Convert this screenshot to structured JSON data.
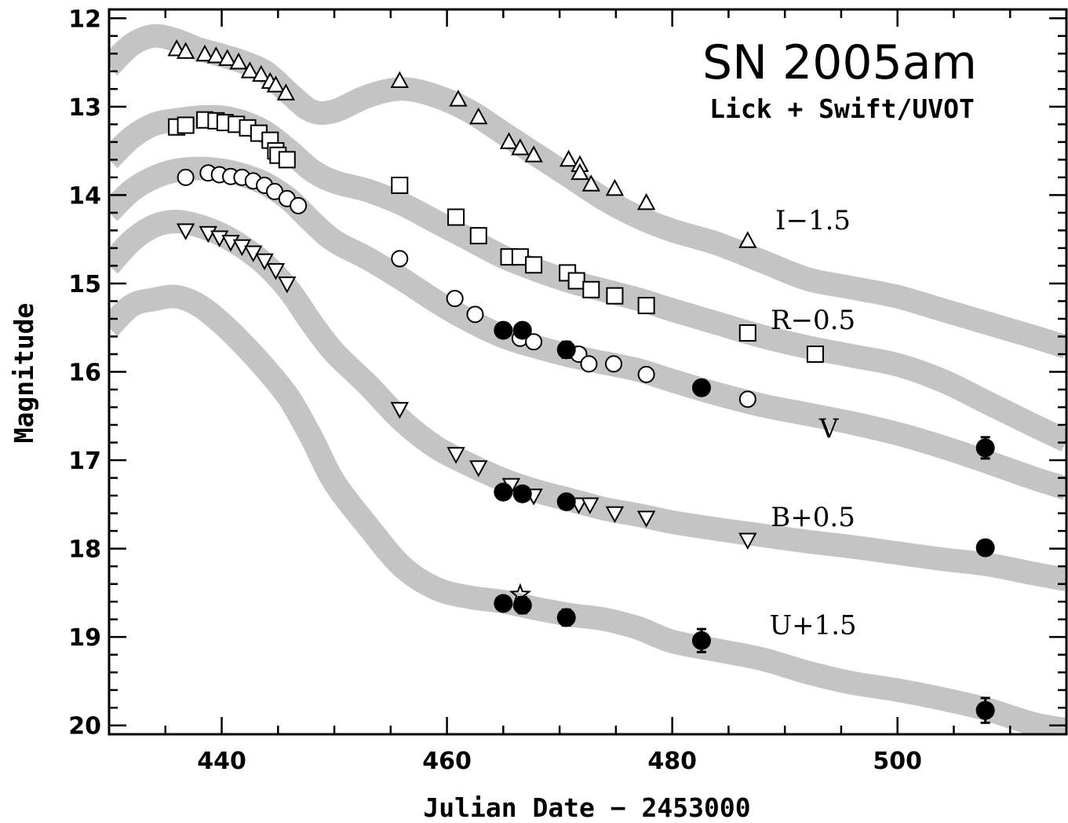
{
  "chart_data": {
    "type": "scatter",
    "title": "SN 2005am",
    "subtitle": "Lick + Swift/UVOT",
    "xlabel": "Julian Date − 2453000",
    "ylabel": "Magnitude",
    "xlim": [
      430,
      515
    ],
    "ylim": [
      20.1,
      11.9
    ],
    "y_inverted": true,
    "x_ticks": [
      440,
      460,
      480,
      500
    ],
    "y_ticks": [
      12,
      13,
      14,
      15,
      16,
      17,
      18,
      19,
      20
    ],
    "grid": false,
    "legend": "none",
    "band_color": "#c4c4c4",
    "series": [
      {
        "name": "I−1.5",
        "marker": "triangle-up",
        "filled": false,
        "label_pos": [
          492.5,
          14.28
        ],
        "template": {
          "x": [
            430,
            432,
            434,
            436,
            438,
            440,
            442,
            444,
            446,
            448,
            450,
            453,
            456,
            459,
            462,
            465,
            468,
            471,
            474,
            477,
            480,
            484,
            488,
            492,
            496,
            500,
            504,
            508,
            512,
            515
          ],
          "y": [
            12.55,
            12.3,
            12.2,
            12.25,
            12.35,
            12.42,
            12.5,
            12.62,
            12.85,
            13.05,
            13.05,
            12.88,
            12.8,
            12.88,
            13.05,
            13.3,
            13.55,
            13.8,
            14.05,
            14.25,
            14.4,
            14.55,
            14.75,
            14.95,
            15.05,
            15.15,
            15.3,
            15.45,
            15.6,
            15.72
          ]
        },
        "points": [
          [
            436,
            12.35
          ],
          [
            436.8,
            12.38
          ],
          [
            438.5,
            12.41
          ],
          [
            439.5,
            12.43
          ],
          [
            440.5,
            12.46
          ],
          [
            441.5,
            12.5
          ],
          [
            442.5,
            12.6
          ],
          [
            443.5,
            12.64
          ],
          [
            444.3,
            12.72
          ],
          [
            444.8,
            12.76
          ],
          [
            445.7,
            12.85
          ],
          [
            455.8,
            12.71
          ],
          [
            461,
            12.92
          ],
          [
            462.8,
            13.12
          ],
          [
            465.5,
            13.4
          ],
          [
            466.5,
            13.47
          ],
          [
            467.7,
            13.55
          ],
          [
            470.8,
            13.6
          ],
          [
            471.8,
            13.66
          ],
          [
            471.8,
            13.75
          ],
          [
            472.8,
            13.88
          ],
          [
            474.9,
            13.93
          ],
          [
            477.7,
            14.09
          ],
          [
            486.7,
            14.52
          ]
        ]
      },
      {
        "name": "R−0.5",
        "marker": "square",
        "filled": false,
        "label_pos": [
          492.5,
          15.41
        ],
        "template": {
          "x": [
            430,
            432,
            434,
            436,
            438,
            440,
            442,
            444,
            446,
            448,
            450,
            453,
            456,
            459,
            462,
            465,
            468,
            471,
            474,
            477,
            480,
            484,
            488,
            492,
            496,
            500,
            504,
            508,
            512,
            515
          ],
          "y": [
            13.6,
            13.35,
            13.2,
            13.15,
            13.12,
            13.12,
            13.18,
            13.3,
            13.5,
            13.72,
            13.85,
            13.95,
            14.1,
            14.3,
            14.5,
            14.7,
            14.85,
            14.98,
            15.08,
            15.18,
            15.3,
            15.45,
            15.6,
            15.72,
            15.82,
            15.92,
            16.1,
            16.35,
            16.6,
            16.78
          ]
        },
        "points": [
          [
            436,
            13.23
          ],
          [
            436.8,
            13.21
          ],
          [
            438.5,
            13.15
          ],
          [
            439.5,
            13.16
          ],
          [
            440.3,
            13.18
          ],
          [
            441.3,
            13.2
          ],
          [
            442.3,
            13.24
          ],
          [
            443.3,
            13.3
          ],
          [
            444.3,
            13.38
          ],
          [
            444.8,
            13.5
          ],
          [
            445,
            13.55
          ],
          [
            445.8,
            13.6
          ],
          [
            455.8,
            13.89
          ],
          [
            460.8,
            14.25
          ],
          [
            462.8,
            14.46
          ],
          [
            465.5,
            14.7
          ],
          [
            466.5,
            14.7
          ],
          [
            467.7,
            14.79
          ],
          [
            470.7,
            14.88
          ],
          [
            471.5,
            14.97
          ],
          [
            472.8,
            15.07
          ],
          [
            474.9,
            15.14
          ],
          [
            477.7,
            15.25
          ],
          [
            486.7,
            15.56
          ],
          [
            492.7,
            15.8
          ]
        ]
      },
      {
        "name": "V",
        "marker": "circle",
        "filled": false,
        "label_pos": [
          493.9,
          16.64
        ],
        "template": {
          "x": [
            430,
            432,
            434,
            436,
            438,
            440,
            442,
            444,
            446,
            448,
            450,
            453,
            456,
            459,
            462,
            465,
            468,
            471,
            474,
            477,
            480,
            484,
            488,
            492,
            496,
            500,
            504,
            508,
            512,
            515
          ],
          "y": [
            14.2,
            13.95,
            13.8,
            13.72,
            13.7,
            13.72,
            13.78,
            13.88,
            14.05,
            14.3,
            14.52,
            14.72,
            14.95,
            15.2,
            15.42,
            15.6,
            15.72,
            15.82,
            15.9,
            15.98,
            16.1,
            16.25,
            16.38,
            16.48,
            16.58,
            16.7,
            16.85,
            17.02,
            17.2,
            17.32
          ]
        },
        "points": [
          [
            436.8,
            13.8
          ],
          [
            438.8,
            13.75
          ],
          [
            439.8,
            13.77
          ],
          [
            440.8,
            13.79
          ],
          [
            441.8,
            13.8
          ],
          [
            442.8,
            13.84
          ],
          [
            443.8,
            13.89
          ],
          [
            444.7,
            13.96
          ],
          [
            445.8,
            14.04
          ],
          [
            446.8,
            14.12
          ],
          [
            455.8,
            14.72
          ],
          [
            460.7,
            15.17
          ],
          [
            462.5,
            15.35
          ],
          [
            466.5,
            15.62
          ],
          [
            467.7,
            15.66
          ],
          [
            471.7,
            15.8
          ],
          [
            472.6,
            15.91
          ],
          [
            474.8,
            15.91
          ],
          [
            477.7,
            16.03
          ],
          [
            486.7,
            16.31
          ]
        ]
      },
      {
        "name": "B+0.5",
        "marker": "triangle-down",
        "filled": false,
        "label_pos": [
          492.5,
          17.64
        ],
        "template": {
          "x": [
            430,
            432,
            434,
            436,
            438,
            440,
            442,
            444,
            446,
            448,
            450,
            453,
            456,
            459,
            462,
            465,
            468,
            471,
            474,
            477,
            480,
            484,
            488,
            492,
            496,
            500,
            504,
            508,
            512,
            515
          ],
          "y": [
            14.8,
            14.52,
            14.35,
            14.3,
            14.35,
            14.45,
            14.6,
            14.8,
            15.08,
            15.45,
            15.78,
            16.15,
            16.55,
            16.85,
            17.05,
            17.22,
            17.35,
            17.45,
            17.55,
            17.62,
            17.7,
            17.78,
            17.85,
            17.92,
            17.98,
            18.05,
            18.12,
            18.18,
            18.28,
            18.35
          ]
        },
        "points": [
          [
            436.8,
            14.4
          ],
          [
            438.8,
            14.43
          ],
          [
            439.8,
            14.48
          ],
          [
            440.8,
            14.53
          ],
          [
            441.8,
            14.58
          ],
          [
            442.8,
            14.65
          ],
          [
            443.8,
            14.74
          ],
          [
            444.8,
            14.85
          ],
          [
            445.8,
            15
          ],
          [
            455.8,
            16.42
          ],
          [
            460.8,
            16.93
          ],
          [
            462.8,
            17.08
          ],
          [
            465.7,
            17.28
          ],
          [
            467.7,
            17.4
          ],
          [
            471.7,
            17.5
          ],
          [
            472.7,
            17.5
          ],
          [
            474.9,
            17.6
          ],
          [
            477.7,
            17.65
          ],
          [
            486.7,
            17.9
          ]
        ]
      },
      {
        "name": "U+1.5",
        "marker": "none",
        "filled": false,
        "label_pos": [
          492.5,
          18.86
        ],
        "template": {
          "x": [
            430,
            432,
            434,
            436,
            438,
            440,
            442,
            444,
            446,
            448,
            450,
            453,
            456,
            459,
            462,
            465,
            468,
            471,
            474,
            477,
            480,
            484,
            488,
            492,
            496,
            500,
            504,
            508,
            512,
            515
          ],
          "y": [
            15.5,
            15.25,
            15.18,
            15.15,
            15.25,
            15.45,
            15.7,
            15.98,
            16.3,
            16.75,
            17.25,
            17.75,
            18.2,
            18.45,
            18.55,
            18.6,
            18.68,
            18.75,
            18.8,
            18.9,
            19.05,
            19.15,
            19.25,
            19.4,
            19.52,
            19.6,
            19.7,
            19.82,
            19.98,
            20.05
          ]
        },
        "points": []
      }
    ],
    "swift_series": [
      {
        "band": "V",
        "points": [
          [
            465,
            15.53,
            0
          ],
          [
            466.7,
            15.53,
            0
          ],
          [
            470.6,
            15.75,
            0.09
          ],
          [
            482.6,
            16.18,
            0
          ],
          [
            507.8,
            16.86,
            0.12
          ]
        ]
      },
      {
        "band": "B",
        "points": [
          [
            465,
            17.36,
            0
          ],
          [
            466.7,
            17.38,
            0
          ],
          [
            470.6,
            17.47,
            0
          ],
          [
            507.8,
            17.99,
            0
          ]
        ]
      },
      {
        "band": "U",
        "points": [
          [
            465,
            18.62,
            0
          ],
          [
            466.7,
            18.64,
            0.09
          ],
          [
            470.6,
            18.78,
            0.09
          ],
          [
            482.6,
            19.04,
            0.13
          ],
          [
            507.8,
            19.83,
            0.14
          ]
        ]
      }
    ],
    "star_point": [
      466.5,
      18.52
    ]
  }
}
